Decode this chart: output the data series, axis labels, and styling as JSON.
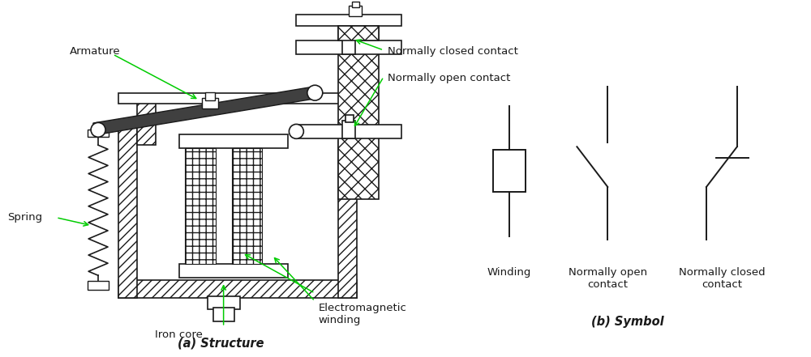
{
  "bg_color": "#ffffff",
  "line_color": "#1a1a1a",
  "arrow_color": "#00cc00",
  "fig_width": 10.0,
  "fig_height": 4.41,
  "labels": {
    "armature": "Armature",
    "spring": "Spring",
    "iron_core": "Iron core",
    "electromagnetic_winding": "Electromagnetic\nwinding",
    "normally_closed_contact": "Normally closed contact",
    "normally_open_contact": "Normally open contact",
    "structure_caption": "(a) Structure",
    "symbol_caption": "(b) Symbol",
    "winding_label": "Winding",
    "no_label": "Normally open\ncontact",
    "nc_label": "Normally closed\ncontact"
  }
}
